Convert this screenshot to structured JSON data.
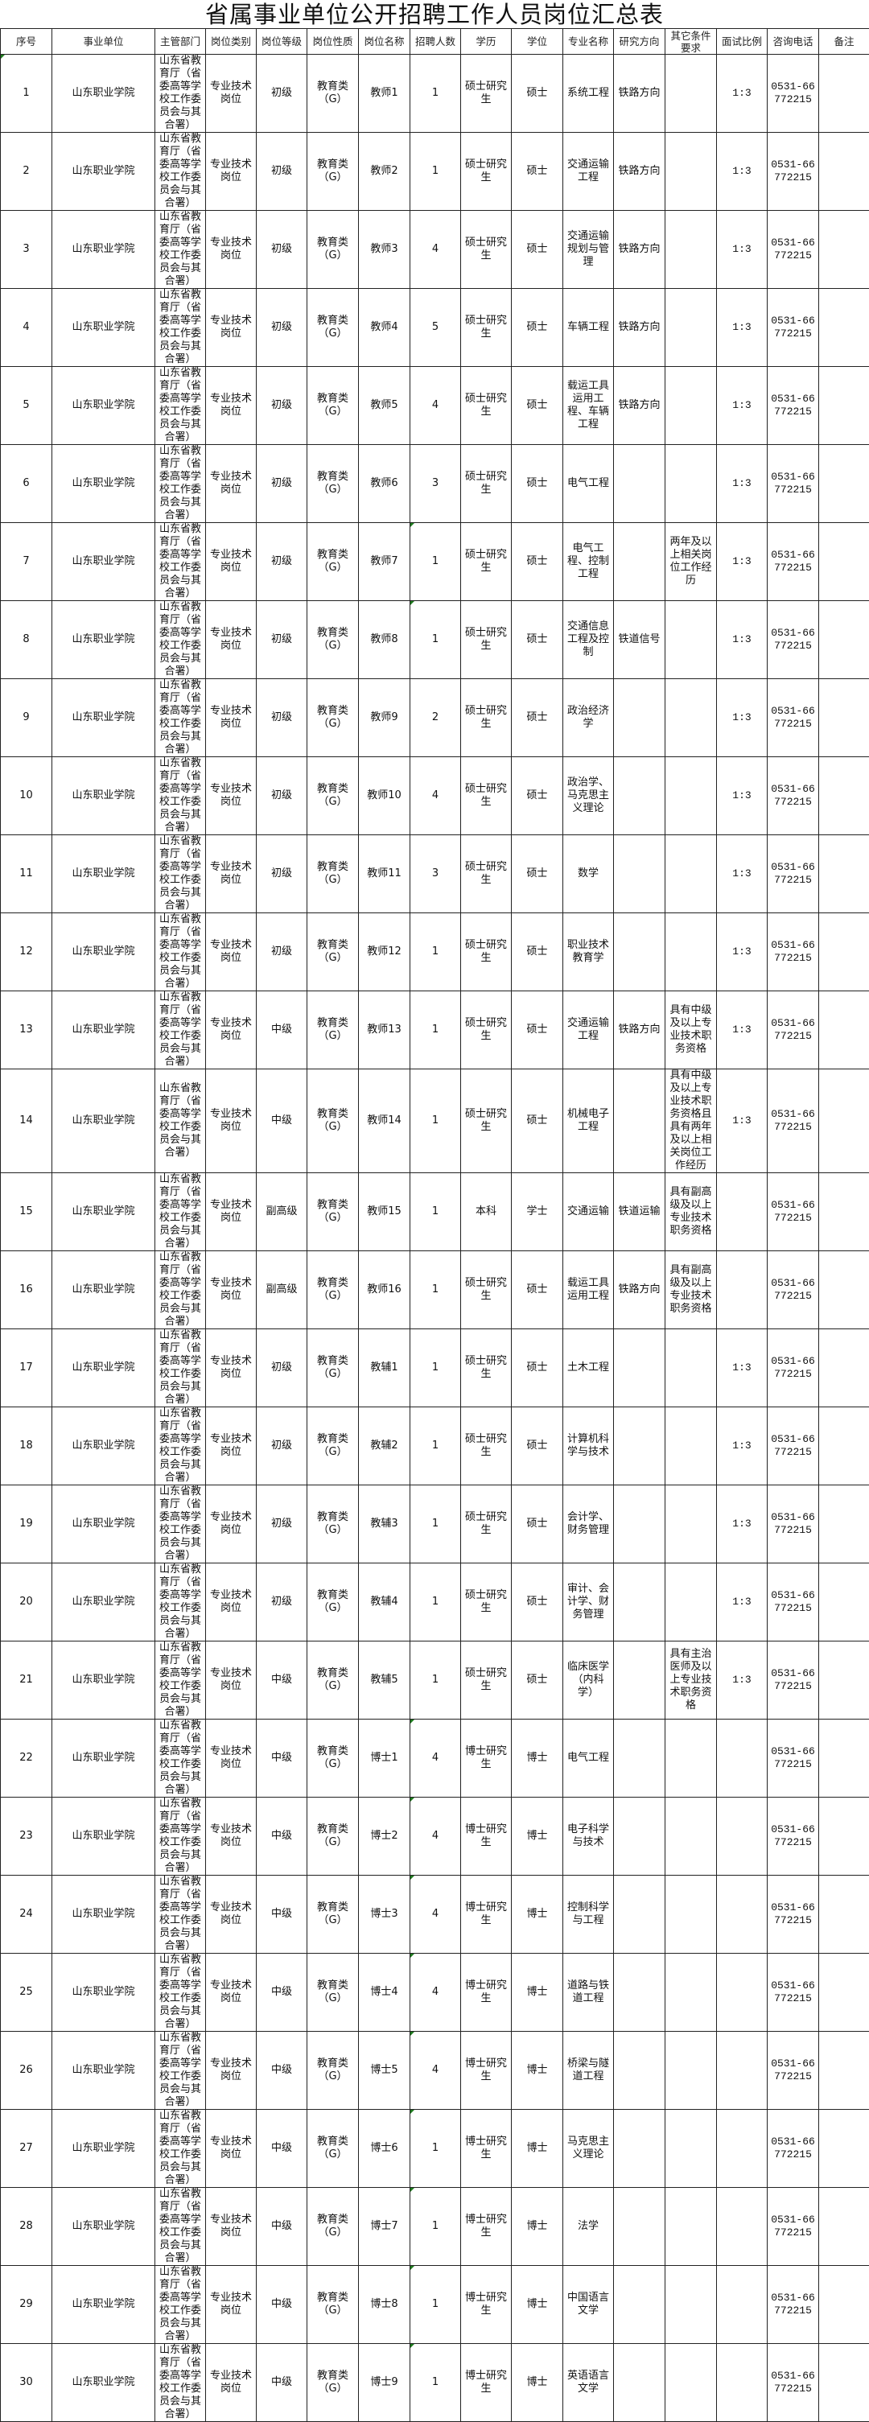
{
  "title": "省属事业单位公开招聘工作人员岗位汇总表",
  "columns": [
    "序号",
    "事业单位",
    "主管部门",
    "岗位类别",
    "岗位等级",
    "岗位性质",
    "岗位名称",
    "招聘人数",
    "学历",
    "学位",
    "专业名称",
    "研究方向",
    "其它条件要求",
    "面试比例",
    "咨询电话",
    "备注"
  ],
  "rows": [
    [
      "1",
      "山东职业学院",
      "山东省教育厅（省委高等学校工作委员会与其合署）",
      "专业技术岗位",
      "初级",
      "教育类（G）",
      "教师1",
      "1",
      "硕士研究生",
      "硕士",
      "系统工程",
      "铁路方向",
      "",
      "1:3",
      "0531-66772215",
      ""
    ],
    [
      "2",
      "山东职业学院",
      "山东省教育厅（省委高等学校工作委员会与其合署）",
      "专业技术岗位",
      "初级",
      "教育类（G）",
      "教师2",
      "1",
      "硕士研究生",
      "硕士",
      "交通运输工程",
      "铁路方向",
      "",
      "1:3",
      "0531-66772215",
      ""
    ],
    [
      "3",
      "山东职业学院",
      "山东省教育厅（省委高等学校工作委员会与其合署）",
      "专业技术岗位",
      "初级",
      "教育类（G）",
      "教师3",
      "4",
      "硕士研究生",
      "硕士",
      "交通运输规划与管理",
      "铁路方向",
      "",
      "1:3",
      "0531-66772215",
      ""
    ],
    [
      "4",
      "山东职业学院",
      "山东省教育厅（省委高等学校工作委员会与其合署）",
      "专业技术岗位",
      "初级",
      "教育类（G）",
      "教师4",
      "5",
      "硕士研究生",
      "硕士",
      "车辆工程",
      "铁路方向",
      "",
      "1:3",
      "0531-66772215",
      ""
    ],
    [
      "5",
      "山东职业学院",
      "山东省教育厅（省委高等学校工作委员会与其合署）",
      "专业技术岗位",
      "初级",
      "教育类（G）",
      "教师5",
      "4",
      "硕士研究生",
      "硕士",
      "载运工具运用工程、车辆工程",
      "铁路方向",
      "",
      "1:3",
      "0531-66772215",
      ""
    ],
    [
      "6",
      "山东职业学院",
      "山东省教育厅（省委高等学校工作委员会与其合署）",
      "专业技术岗位",
      "初级",
      "教育类（G）",
      "教师6",
      "3",
      "硕士研究生",
      "硕士",
      "电气工程",
      "",
      "",
      "1:3",
      "0531-66772215",
      ""
    ],
    [
      "7",
      "山东职业学院",
      "山东省教育厅（省委高等学校工作委员会与其合署）",
      "专业技术岗位",
      "初级",
      "教育类（G）",
      "教师7",
      "1",
      "硕士研究生",
      "硕士",
      "电气工程、控制工程",
      "",
      "两年及以上相关岗位工作经历",
      "1:3",
      "0531-66772215",
      ""
    ],
    [
      "8",
      "山东职业学院",
      "山东省教育厅（省委高等学校工作委员会与其合署）",
      "专业技术岗位",
      "初级",
      "教育类（G）",
      "教师8",
      "1",
      "硕士研究生",
      "硕士",
      "交通信息工程及控制",
      "铁道信号",
      "",
      "1:3",
      "0531-66772215",
      ""
    ],
    [
      "9",
      "山东职业学院",
      "山东省教育厅（省委高等学校工作委员会与其合署）",
      "专业技术岗位",
      "初级",
      "教育类（G）",
      "教师9",
      "2",
      "硕士研究生",
      "硕士",
      "政治经济学",
      "",
      "",
      "1:3",
      "0531-66772215",
      ""
    ],
    [
      "10",
      "山东职业学院",
      "山东省教育厅（省委高等学校工作委员会与其合署）",
      "专业技术岗位",
      "初级",
      "教育类（G）",
      "教师10",
      "4",
      "硕士研究生",
      "硕士",
      "政治学、马克思主义理论",
      "",
      "",
      "1:3",
      "0531-66772215",
      ""
    ],
    [
      "11",
      "山东职业学院",
      "山东省教育厅（省委高等学校工作委员会与其合署）",
      "专业技术岗位",
      "初级",
      "教育类（G）",
      "教师11",
      "3",
      "硕士研究生",
      "硕士",
      "数学",
      "",
      "",
      "1:3",
      "0531-66772215",
      ""
    ],
    [
      "12",
      "山东职业学院",
      "山东省教育厅（省委高等学校工作委员会与其合署）",
      "专业技术岗位",
      "初级",
      "教育类（G）",
      "教师12",
      "1",
      "硕士研究生",
      "硕士",
      "职业技术教育学",
      "",
      "",
      "1:3",
      "0531-66772215",
      ""
    ],
    [
      "13",
      "山东职业学院",
      "山东省教育厅（省委高等学校工作委员会与其合署）",
      "专业技术岗位",
      "中级",
      "教育类（G）",
      "教师13",
      "1",
      "硕士研究生",
      "硕士",
      "交通运输工程",
      "铁路方向",
      "具有中级及以上专业技术职务资格",
      "1:3",
      "0531-66772215",
      ""
    ],
    [
      "14",
      "山东职业学院",
      "山东省教育厅（省委高等学校工作委员会与其合署）",
      "专业技术岗位",
      "中级",
      "教育类（G）",
      "教师14",
      "1",
      "硕士研究生",
      "硕士",
      "机械电子工程",
      "",
      "具有中级及以上专业技术职务资格且具有两年及以上相关岗位工作经历",
      "1:3",
      "0531-66772215",
      ""
    ],
    [
      "15",
      "山东职业学院",
      "山东省教育厅（省委高等学校工作委员会与其合署）",
      "专业技术岗位",
      "副高级",
      "教育类（G）",
      "教师15",
      "1",
      "本科",
      "学士",
      "交通运输",
      "铁道运输",
      "具有副高级及以上专业技术职务资格",
      "",
      "0531-66772215",
      ""
    ],
    [
      "16",
      "山东职业学院",
      "山东省教育厅（省委高等学校工作委员会与其合署）",
      "专业技术岗位",
      "副高级",
      "教育类（G）",
      "教师16",
      "1",
      "硕士研究生",
      "硕士",
      "载运工具运用工程",
      "铁路方向",
      "具有副高级及以上专业技术职务资格",
      "",
      "0531-66772215",
      ""
    ],
    [
      "17",
      "山东职业学院",
      "山东省教育厅（省委高等学校工作委员会与其合署）",
      "专业技术岗位",
      "初级",
      "教育类（G）",
      "教辅1",
      "1",
      "硕士研究生",
      "硕士",
      "土木工程",
      "",
      "",
      "1:3",
      "0531-66772215",
      ""
    ],
    [
      "18",
      "山东职业学院",
      "山东省教育厅（省委高等学校工作委员会与其合署）",
      "专业技术岗位",
      "初级",
      "教育类（G）",
      "教辅2",
      "1",
      "硕士研究生",
      "硕士",
      "计算机科学与技术",
      "",
      "",
      "1:3",
      "0531-66772215",
      ""
    ],
    [
      "19",
      "山东职业学院",
      "山东省教育厅（省委高等学校工作委员会与其合署）",
      "专业技术岗位",
      "初级",
      "教育类（G）",
      "教辅3",
      "1",
      "硕士研究生",
      "硕士",
      "会计学、财务管理",
      "",
      "",
      "1:3",
      "0531-66772215",
      ""
    ],
    [
      "20",
      "山东职业学院",
      "山东省教育厅（省委高等学校工作委员会与其合署）",
      "专业技术岗位",
      "初级",
      "教育类（G）",
      "教辅4",
      "1",
      "硕士研究生",
      "硕士",
      "审计、会计学、财务管理",
      "",
      "",
      "1:3",
      "0531-66772215",
      ""
    ],
    [
      "21",
      "山东职业学院",
      "山东省教育厅（省委高等学校工作委员会与其合署）",
      "专业技术岗位",
      "中级",
      "教育类（G）",
      "教辅5",
      "1",
      "硕士研究生",
      "硕士",
      "临床医学（内科学）",
      "",
      "具有主治医师及以上专业技术职务资格",
      "1:3",
      "0531-66772215",
      ""
    ],
    [
      "22",
      "山东职业学院",
      "山东省教育厅（省委高等学校工作委员会与其合署）",
      "专业技术岗位",
      "中级",
      "教育类（G）",
      "博士1",
      "4",
      "博士研究生",
      "博士",
      "电气工程",
      "",
      "",
      "",
      "0531-66772215",
      ""
    ],
    [
      "23",
      "山东职业学院",
      "山东省教育厅（省委高等学校工作委员会与其合署）",
      "专业技术岗位",
      "中级",
      "教育类（G）",
      "博士2",
      "4",
      "博士研究生",
      "博士",
      "电子科学与技术",
      "",
      "",
      "",
      "0531-66772215",
      ""
    ],
    [
      "24",
      "山东职业学院",
      "山东省教育厅（省委高等学校工作委员会与其合署）",
      "专业技术岗位",
      "中级",
      "教育类（G）",
      "博士3",
      "4",
      "博士研究生",
      "博士",
      "控制科学与工程",
      "",
      "",
      "",
      "0531-66772215",
      ""
    ],
    [
      "25",
      "山东职业学院",
      "山东省教育厅（省委高等学校工作委员会与其合署）",
      "专业技术岗位",
      "中级",
      "教育类（G）",
      "博士4",
      "4",
      "博士研究生",
      "博士",
      "道路与铁道工程",
      "",
      "",
      "",
      "0531-66772215",
      ""
    ],
    [
      "26",
      "山东职业学院",
      "山东省教育厅（省委高等学校工作委员会与其合署）",
      "专业技术岗位",
      "中级",
      "教育类（G）",
      "博士5",
      "4",
      "博士研究生",
      "博士",
      "桥梁与隧道工程",
      "",
      "",
      "",
      "0531-66772215",
      ""
    ],
    [
      "27",
      "山东职业学院",
      "山东省教育厅（省委高等学校工作委员会与其合署）",
      "专业技术岗位",
      "中级",
      "教育类（G）",
      "博士6",
      "1",
      "博士研究生",
      "博士",
      "马克思主义理论",
      "",
      "",
      "",
      "0531-66772215",
      ""
    ],
    [
      "28",
      "山东职业学院",
      "山东省教育厅（省委高等学校工作委员会与其合署）",
      "专业技术岗位",
      "中级",
      "教育类（G）",
      "博士7",
      "1",
      "博士研究生",
      "博士",
      "法学",
      "",
      "",
      "",
      "0531-66772215",
      ""
    ],
    [
      "29",
      "山东职业学院",
      "山东省教育厅（省委高等学校工作委员会与其合署）",
      "专业技术岗位",
      "中级",
      "教育类（G）",
      "博士8",
      "1",
      "博士研究生",
      "博士",
      "中国语言文学",
      "",
      "",
      "",
      "0531-66772215",
      ""
    ],
    [
      "30",
      "山东职业学院",
      "山东省教育厅（省委高等学校工作委员会与其合署）",
      "专业技术岗位",
      "中级",
      "教育类（G）",
      "博士9",
      "1",
      "博士研究生",
      "博士",
      "英语语言文学",
      "",
      "",
      "",
      "0531-66772215",
      ""
    ]
  ]
}
